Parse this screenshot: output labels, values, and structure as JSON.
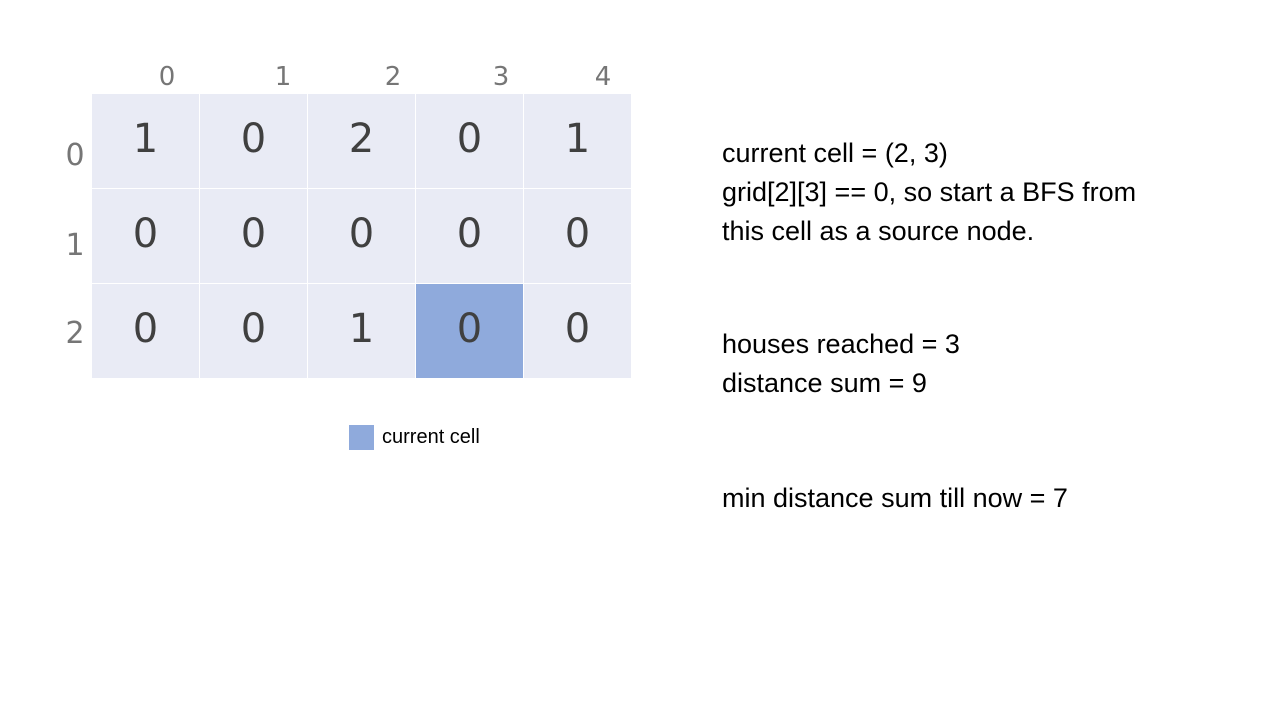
{
  "grid": {
    "column_labels": [
      "0",
      "1",
      "2",
      "3",
      "4"
    ],
    "row_labels": [
      "0",
      "1",
      "2"
    ],
    "cells": [
      [
        "1",
        "0",
        "2",
        "0",
        "1"
      ],
      [
        "0",
        "0",
        "0",
        "0",
        "0"
      ],
      [
        "0",
        "0",
        "1",
        "0",
        "0"
      ]
    ],
    "current_cell": [
      2,
      3
    ],
    "cell_color": "#e9ebf5",
    "highlight_color": "#8faadc"
  },
  "legend": {
    "label": "current cell",
    "color": "#8faadc"
  },
  "info": {
    "line1": "current cell = (2, 3)",
    "line2": "grid[2][3] == 0, so start a BFS from",
    "line3": "this cell as a source node.",
    "houses_reached": "houses reached = 3",
    "distance_sum": "distance sum = 9",
    "min_distance": "min distance sum till now = 7"
  }
}
